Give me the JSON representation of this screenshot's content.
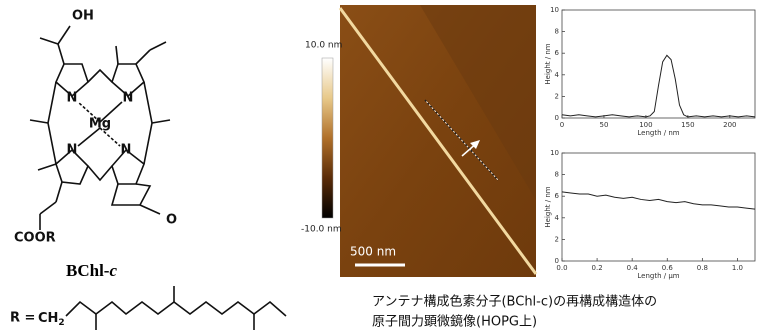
{
  "structure": {
    "atoms": [
      "OH",
      "N",
      "N",
      "Mg",
      "N",
      "N",
      "O",
      "COOR"
    ],
    "name": "BChl-",
    "name_suffix": "c",
    "r_label": "R =",
    "r_group": "CH",
    "r_group_sub": "2"
  },
  "afm": {
    "scale_max": "10.0 nm",
    "scale_min": "-10.0 nm",
    "scale_bar": "500 nm"
  },
  "caption": [
    "アンテナ構成色素分子(BChl-c)の再構成構造体の",
    "原子間力顕微鏡像(HOPG上)"
  ],
  "chart_data": [
    {
      "type": "line",
      "xlabel": "Length / nm",
      "ylabel": "Height / nm",
      "x": [
        0,
        10,
        20,
        30,
        40,
        50,
        60,
        70,
        80,
        90,
        100,
        105,
        110,
        115,
        120,
        125,
        130,
        135,
        140,
        145,
        150,
        160,
        170,
        180,
        190,
        200,
        210,
        220,
        230
      ],
      "series": [
        {
          "color": "#222222",
          "values": [
            0.3,
            0.2,
            0.3,
            0.2,
            0.1,
            0.2,
            0.3,
            0.2,
            0.1,
            0.2,
            0.1,
            0.2,
            0.6,
            3.0,
            5.2,
            5.8,
            5.4,
            3.6,
            1.2,
            0.3,
            0.1,
            0.2,
            0.1,
            0.2,
            0.1,
            0.2,
            0.1,
            0.2,
            0.1
          ]
        }
      ],
      "xlim": [
        0,
        230
      ],
      "xticks": [
        0,
        50,
        100,
        150,
        200
      ],
      "ylim": [
        0,
        10
      ],
      "yticks": [
        0,
        2,
        4,
        6,
        8,
        10
      ]
    },
    {
      "type": "line",
      "xlabel": "Length / μm",
      "ylabel": "Height / nm",
      "x": [
        0,
        0.05,
        0.1,
        0.15,
        0.2,
        0.25,
        0.3,
        0.35,
        0.4,
        0.45,
        0.5,
        0.55,
        0.6,
        0.65,
        0.7,
        0.75,
        0.8,
        0.85,
        0.9,
        0.95,
        1.0,
        1.05,
        1.1
      ],
      "series": [
        {
          "color": "#222222",
          "values": [
            6.4,
            6.3,
            6.2,
            6.2,
            6.0,
            6.1,
            5.9,
            5.8,
            5.9,
            5.7,
            5.6,
            5.7,
            5.5,
            5.4,
            5.5,
            5.3,
            5.2,
            5.2,
            5.1,
            5.0,
            5.0,
            4.9,
            4.8
          ]
        }
      ],
      "xlim": [
        0,
        1.1
      ],
      "xticks": [
        {
          "value": 0,
          "label": "0.0"
        },
        0.2,
        0.4,
        0.6,
        0.8,
        {
          "value": 1,
          "label": "1.0"
        }
      ],
      "ylim": [
        0,
        10
      ],
      "yticks": [
        0,
        2,
        4,
        6,
        8,
        10
      ]
    }
  ]
}
